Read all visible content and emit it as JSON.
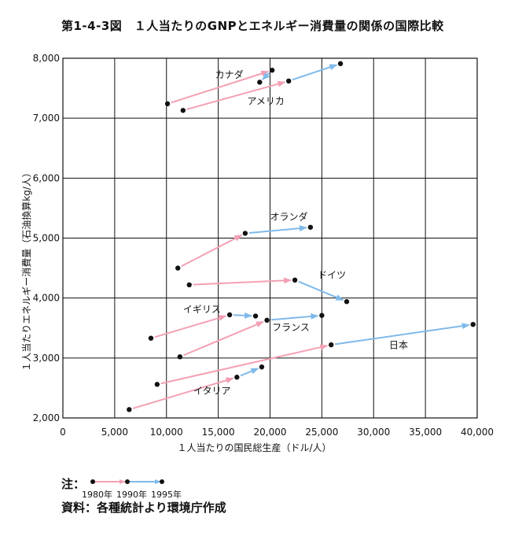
{
  "title": "第1-4-3図　１人当たりのGNPとエネルギー消費量の関係の国際比較",
  "chart_data": {
    "type": "scatter",
    "xlabel": "１人当たりの国民総生産（ドル/人）",
    "ylabel": "１人当たりエネルギー消費量（石油換算kg/人）",
    "xlim": [
      0,
      40000
    ],
    "ylim": [
      2000,
      8000
    ],
    "x_ticks": [
      0,
      5000,
      10000,
      15000,
      20000,
      25000,
      30000,
      35000,
      40000
    ],
    "x_tick_labels": [
      "0",
      "5,000",
      "10,000",
      "15,000",
      "20,000",
      "25,000",
      "30,000",
      "35,000",
      "40,000"
    ],
    "y_ticks": [
      2000,
      3000,
      4000,
      5000,
      6000,
      7000,
      8000
    ],
    "y_tick_labels": [
      "2,000",
      "3,000",
      "4,000",
      "5,000",
      "6,000",
      "7,000",
      "8,000"
    ],
    "grid": true,
    "series": [
      {
        "name": "カナダ",
        "points": [
          [
            10100,
            7240
          ],
          [
            20200,
            7800
          ],
          [
            19000,
            7600
          ]
        ],
        "label_at": [
          14700,
          7670
        ]
      },
      {
        "name": "アメリカ",
        "points": [
          [
            11600,
            7130
          ],
          [
            21800,
            7620
          ],
          [
            26800,
            7910
          ]
        ],
        "label_at": [
          17800,
          7230
        ]
      },
      {
        "name": "オランダ",
        "points": [
          [
            11100,
            4500
          ],
          [
            17600,
            5080
          ],
          [
            23900,
            5180
          ]
        ],
        "label_at": [
          20000,
          5300
        ]
      },
      {
        "name": "ドイツ",
        "points": [
          [
            12200,
            4220
          ],
          [
            22400,
            4300
          ],
          [
            27400,
            3940
          ]
        ],
        "label_at": [
          24600,
          4330
        ]
      },
      {
        "name": "イギリス",
        "points": [
          [
            8500,
            3330
          ],
          [
            16100,
            3720
          ],
          [
            18600,
            3700
          ]
        ],
        "label_at": [
          11600,
          3760
        ]
      },
      {
        "name": "フランス",
        "points": [
          [
            11300,
            3020
          ],
          [
            19700,
            3630
          ],
          [
            25000,
            3710
          ]
        ],
        "label_at": [
          20200,
          3460
        ]
      },
      {
        "name": "日本",
        "points": [
          [
            9100,
            2560
          ],
          [
            25900,
            3220
          ],
          [
            39600,
            3560
          ]
        ],
        "label_at": [
          31500,
          3160
        ]
      },
      {
        "name": "イタリア",
        "points": [
          [
            6400,
            2140
          ],
          [
            16800,
            2680
          ],
          [
            19200,
            2850
          ]
        ],
        "label_at": [
          12600,
          2400
        ]
      }
    ],
    "segment_colors": {
      "1980_to_1990": "#f4a0b4",
      "1990_to_1995": "#7fbaea"
    },
    "marker_color": "#111111"
  },
  "note": {
    "label": "注：",
    "years": [
      "1980年",
      "1990年",
      "1995年"
    ]
  },
  "source": "資料：各種統計より環境庁作成"
}
